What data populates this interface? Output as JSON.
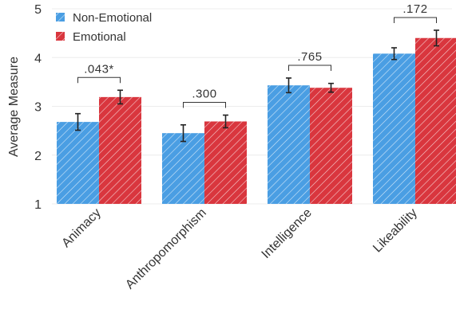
{
  "colors": {
    "non_emotional": "#4a9ee3",
    "emotional": "#d9363e",
    "hatch": "#ffffff",
    "grid": "#ececec",
    "text": "#333333"
  },
  "chart_data": {
    "type": "bar",
    "title": "",
    "xlabel": "",
    "ylabel": "Average Measure",
    "ylim": [
      1,
      5
    ],
    "yticks": [
      1,
      2,
      3,
      4,
      5
    ],
    "grid": "horizontal",
    "legend_position": "top-left",
    "categories": [
      "Animacy",
      "Anthropomorphism",
      "Intelligence",
      "Likeability"
    ],
    "series": [
      {
        "name": "Non-Emotional",
        "color": "#4a9ee3",
        "values": [
          2.68,
          2.45,
          3.43,
          4.08
        ],
        "error": [
          0.17,
          0.17,
          0.15,
          0.12
        ]
      },
      {
        "name": "Emotional",
        "color": "#d9363e",
        "values": [
          3.19,
          2.69,
          3.38,
          4.4
        ],
        "error": [
          0.14,
          0.13,
          0.09,
          0.16
        ]
      }
    ],
    "significance": [
      ".043*",
      ".300",
      ".765",
      ".172"
    ]
  }
}
